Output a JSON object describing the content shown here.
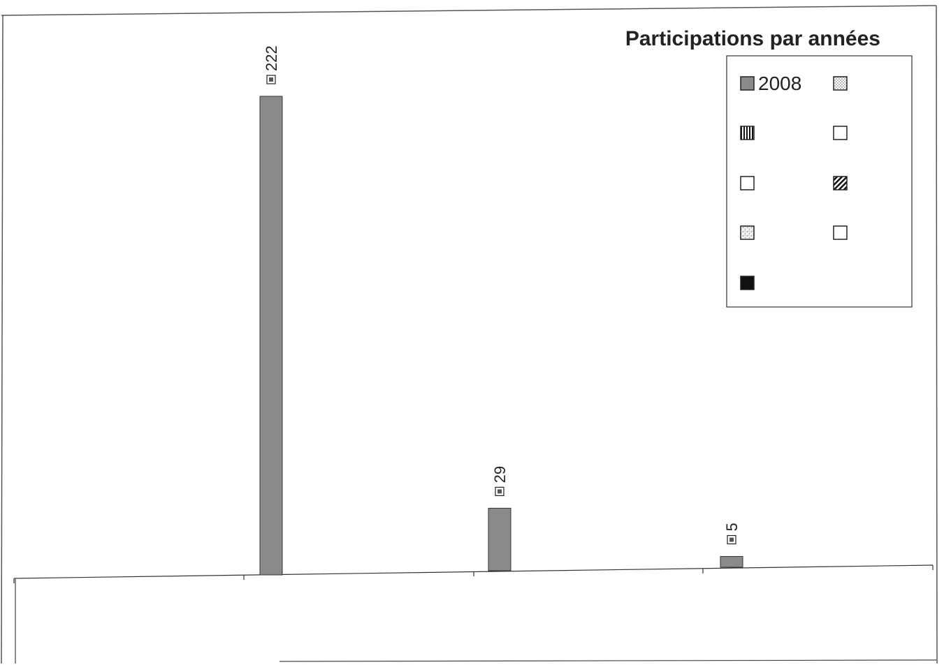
{
  "chart_data": {
    "type": "bar",
    "title": "Participations par années",
    "categories": [
      "",
      "",
      ""
    ],
    "series": [
      {
        "name": "2008",
        "values": [
          222,
          29,
          5
        ]
      }
    ],
    "data_labels": [
      "222",
      "29",
      "5"
    ],
    "xlabel": "",
    "ylabel": "",
    "ylim": [
      0,
      222
    ],
    "grid": false,
    "legend_position": "top-right",
    "legend_entries": [
      "2008",
      "",
      "",
      "",
      "",
      "",
      "",
      "",
      ""
    ],
    "legend_swatches": [
      "gray",
      "dotted",
      "vertical-stripes",
      "empty",
      "empty",
      "diagonal-hatch",
      "speckled",
      "empty",
      "solid-black"
    ],
    "colors": {
      "bar": "#8a8a8a",
      "axis": "#333333",
      "text": "#222222",
      "swatch_dark": "#111111"
    }
  }
}
